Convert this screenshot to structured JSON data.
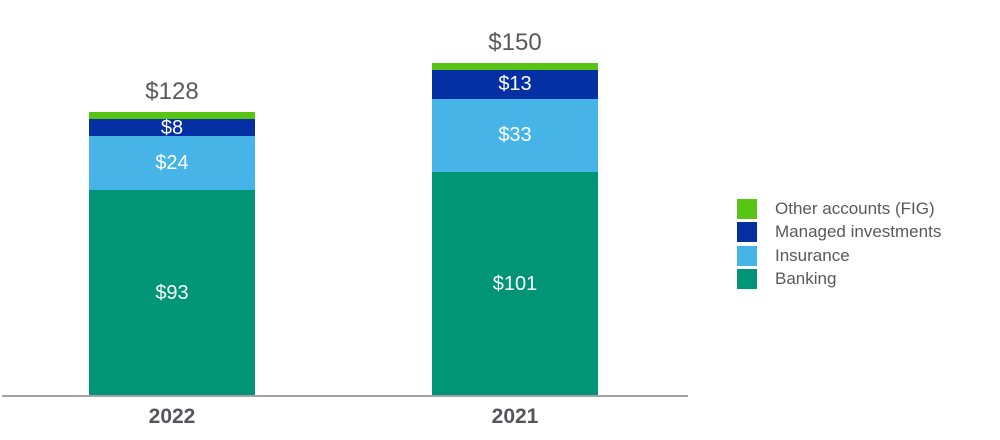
{
  "chart_data": {
    "type": "bar",
    "stacked": true,
    "title": "",
    "xlabel": "",
    "ylabel": "",
    "grid": false,
    "value_prefix": "$",
    "categories": [
      "2022",
      "2021"
    ],
    "series": [
      {
        "name": "Banking",
        "color": "#009577",
        "values": [
          93,
          101
        ],
        "value_labels": [
          "$93",
          "$101"
        ]
      },
      {
        "name": "Insurance",
        "color": "#46B4E6",
        "values": [
          24,
          33
        ],
        "value_labels": [
          "$24",
          "$33"
        ]
      },
      {
        "name": "Managed investments",
        "color": "#0530A3",
        "values": [
          8,
          13
        ],
        "value_labels": [
          "$8",
          "$13"
        ]
      },
      {
        "name": "Other accounts (FIG)",
        "color": "#58C414",
        "values": [
          3,
          3
        ],
        "value_labels": [
          "",
          ""
        ]
      }
    ],
    "totals": [
      128,
      150
    ],
    "total_labels": [
      "$128",
      "$150"
    ],
    "legend": {
      "position": "right",
      "items": [
        "Other accounts (FIG)",
        "Managed investments",
        "Insurance",
        "Banking"
      ]
    },
    "colors": {
      "total_label": "#595959",
      "category_label": "#54565A",
      "segment_label": "#FFFFFF",
      "legend_label": "#595959",
      "axis_line": "#A3A3A3"
    }
  }
}
